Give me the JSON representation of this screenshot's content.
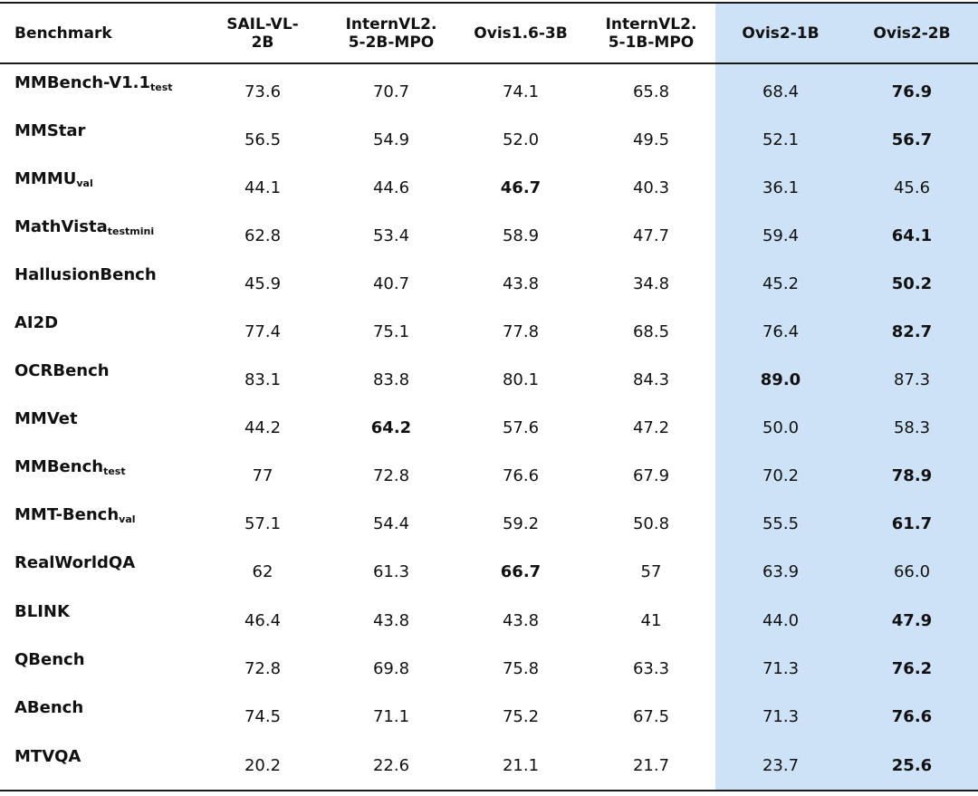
{
  "table": {
    "headers": [
      "Benchmark",
      "SAIL-VL-\n2B",
      "InternVL2.\n5-2B-MPO",
      "Ovis1.6-3B",
      "InternVL2.\n5-1B-MPO",
      "Ovis2-1B",
      "Ovis2-2B"
    ],
    "highlight_color": "#cde2f6",
    "rows": [
      {
        "name": "MMBench-V1.1",
        "sub": "test",
        "values": [
          "73.6",
          "70.7",
          "74.1",
          "65.8",
          "68.4",
          "76.9"
        ],
        "bold": [
          5
        ]
      },
      {
        "name": "MMStar",
        "sub": "",
        "values": [
          "56.5",
          "54.9",
          "52.0",
          "49.5",
          "52.1",
          "56.7"
        ],
        "bold": [
          5
        ]
      },
      {
        "name": "MMMU",
        "sub": "val",
        "values": [
          "44.1",
          "44.6",
          "46.7",
          "40.3",
          "36.1",
          "45.6"
        ],
        "bold": [
          2
        ]
      },
      {
        "name": "MathVista",
        "sub": "testmini",
        "values": [
          "62.8",
          "53.4",
          "58.9",
          "47.7",
          "59.4",
          "64.1"
        ],
        "bold": [
          5
        ]
      },
      {
        "name": "HallusionBench",
        "sub": "",
        "values": [
          "45.9",
          "40.7",
          "43.8",
          "34.8",
          "45.2",
          "50.2"
        ],
        "bold": [
          5
        ]
      },
      {
        "name": "AI2D",
        "sub": "",
        "values": [
          "77.4",
          "75.1",
          "77.8",
          "68.5",
          "76.4",
          "82.7"
        ],
        "bold": [
          5
        ]
      },
      {
        "name": "OCRBench",
        "sub": "",
        "values": [
          "83.1",
          "83.8",
          "80.1",
          "84.3",
          "89.0",
          "87.3"
        ],
        "bold": [
          4
        ]
      },
      {
        "name": "MMVet",
        "sub": "",
        "values": [
          "44.2",
          "64.2",
          "57.6",
          "47.2",
          "50.0",
          "58.3"
        ],
        "bold": [
          1
        ]
      },
      {
        "name": "MMBench",
        "sub": "test",
        "values": [
          "77",
          "72.8",
          "76.6",
          "67.9",
          "70.2",
          "78.9"
        ],
        "bold": [
          5
        ]
      },
      {
        "name": "MMT-Bench",
        "sub": "val",
        "values": [
          "57.1",
          "54.4",
          "59.2",
          "50.8",
          "55.5",
          "61.7"
        ],
        "bold": [
          5
        ]
      },
      {
        "name": "RealWorldQA",
        "sub": "",
        "values": [
          "62",
          "61.3",
          "66.7",
          "57",
          "63.9",
          "66.0"
        ],
        "bold": [
          2
        ]
      },
      {
        "name": "BLINK",
        "sub": "",
        "values": [
          "46.4",
          "43.8",
          "43.8",
          "41",
          "44.0",
          "47.9"
        ],
        "bold": [
          5
        ]
      },
      {
        "name": "QBench",
        "sub": "",
        "values": [
          "72.8",
          "69.8",
          "75.8",
          "63.3",
          "71.3",
          "76.2"
        ],
        "bold": [
          5
        ]
      },
      {
        "name": "ABench",
        "sub": "",
        "values": [
          "74.5",
          "71.1",
          "75.2",
          "67.5",
          "71.3",
          "76.6"
        ],
        "bold": [
          5
        ]
      },
      {
        "name": "MTVQA",
        "sub": "",
        "values": [
          "20.2",
          "22.6",
          "21.1",
          "21.7",
          "23.7",
          "25.6"
        ],
        "bold": [
          5
        ]
      }
    ]
  }
}
